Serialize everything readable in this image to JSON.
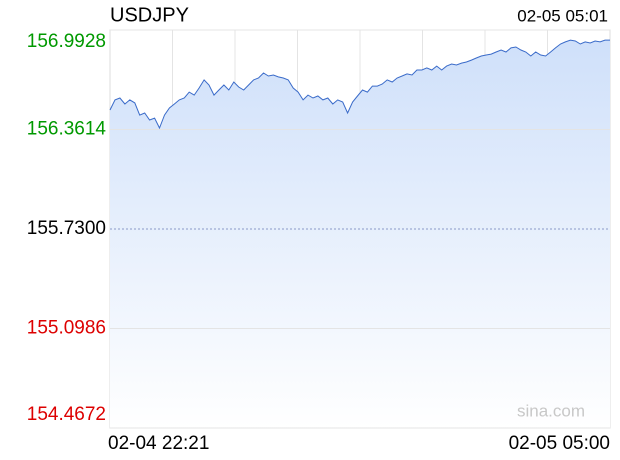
{
  "chart_data": {
    "type": "line",
    "title": "USDJPY",
    "timestamp": "02-05 05:01",
    "watermark": "sina.com",
    "series": [
      {
        "name": "USDJPY",
        "color": "#3a6bc9",
        "values": [
          156.485,
          156.549,
          156.561,
          156.523,
          156.549,
          156.53,
          156.453,
          156.466,
          156.422,
          156.434,
          156.371,
          156.453,
          156.498,
          156.523,
          156.549,
          156.561,
          156.599,
          156.58,
          156.625,
          156.676,
          156.644,
          156.58,
          156.612,
          156.644,
          156.612,
          156.663,
          156.631,
          156.612,
          156.644,
          156.676,
          156.688,
          156.72,
          156.701,
          156.707,
          156.695,
          156.688,
          156.676,
          156.625,
          156.599,
          156.549,
          156.58,
          156.561,
          156.574,
          156.549,
          156.561,
          156.523,
          156.549,
          156.536,
          156.466,
          156.536,
          156.574,
          156.612,
          156.599,
          156.637,
          156.637,
          156.65,
          156.676,
          156.663,
          156.688,
          156.701,
          156.714,
          156.707,
          156.739,
          156.739,
          156.752,
          156.739,
          156.764,
          156.739,
          156.764,
          156.777,
          156.771,
          156.783,
          156.79,
          156.802,
          156.815,
          156.828,
          156.834,
          156.84,
          156.853,
          156.866,
          156.853,
          156.879,
          156.885,
          156.866,
          156.853,
          156.828,
          156.853,
          156.834,
          156.828,
          156.853,
          156.879,
          156.904,
          156.917,
          156.929,
          156.923,
          156.904,
          156.917,
          156.91,
          156.923,
          156.917,
          156.929,
          156.929
        ]
      }
    ],
    "xticks": [
      {
        "value": 0,
        "label": "02-04 22:21"
      },
      {
        "value": 101,
        "label": "02-05 05:00"
      }
    ],
    "ylim": [
      154.4672,
      156.9928
    ],
    "yticks": [
      156.9928,
      156.3614,
      {
        "value": 155.73,
        "label": "155.7300"
      },
      155.0986,
      154.4672
    ],
    "ytick_colors": [
      "#009900",
      "#009900",
      "#000000",
      "#dd0000",
      "#dd0000"
    ],
    "grid": true
  }
}
